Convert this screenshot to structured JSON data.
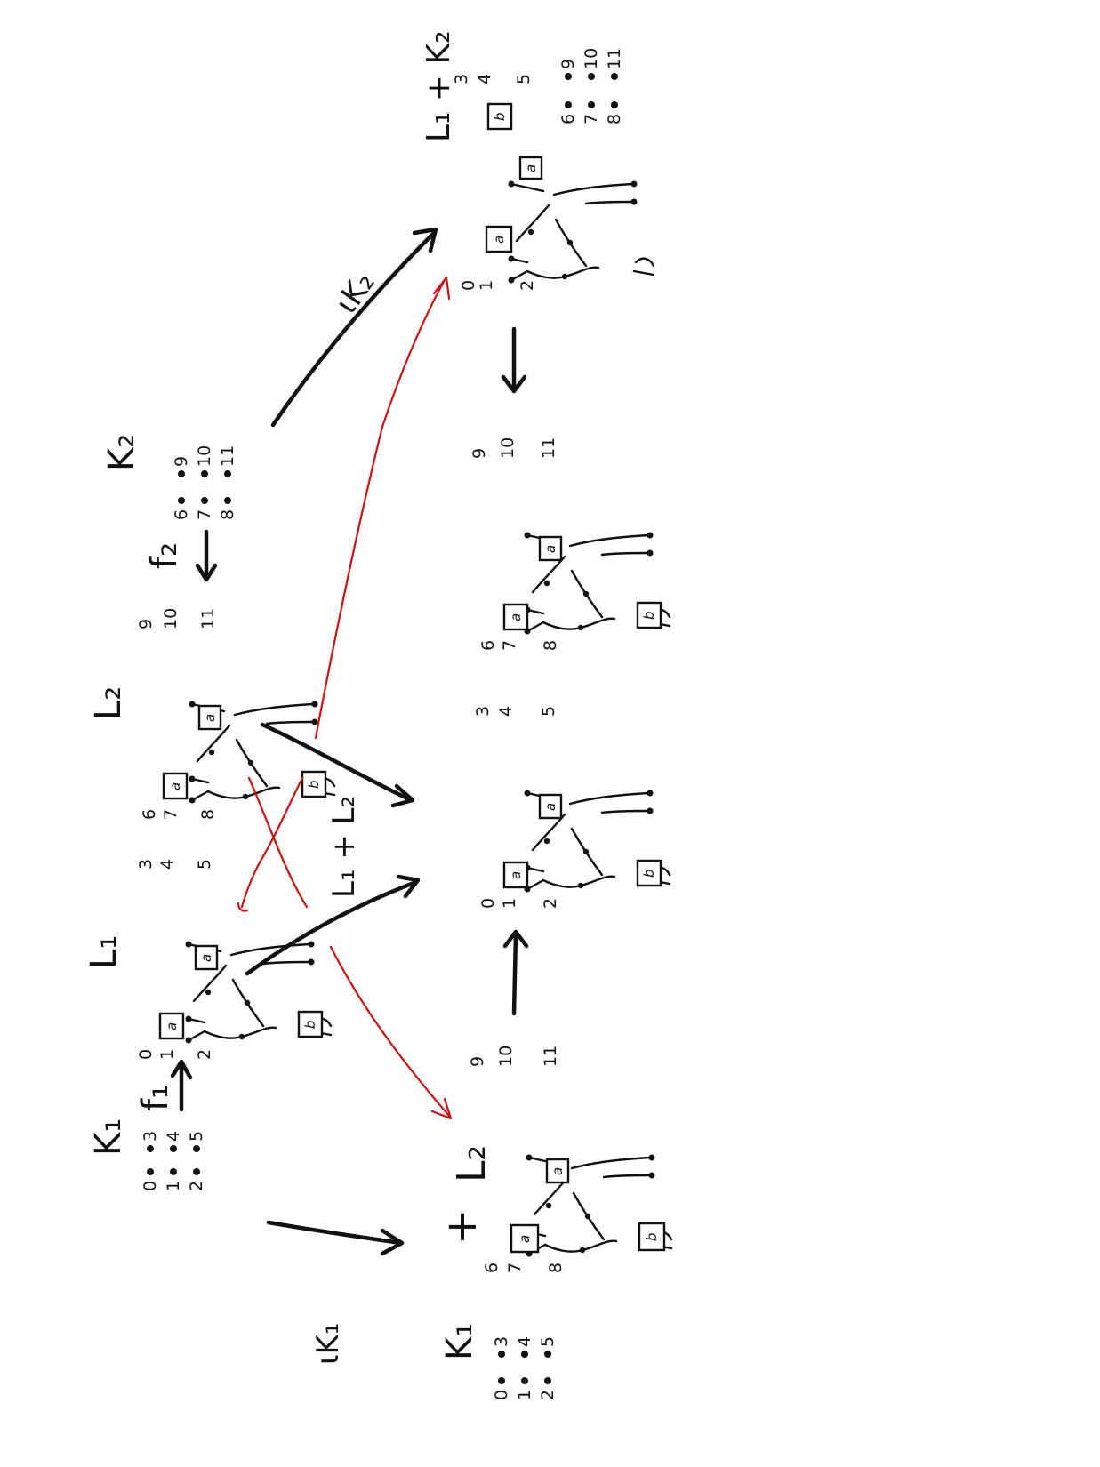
{
  "labels": {
    "K1": "K₁",
    "L1": "L₁",
    "L2": "L₂",
    "K2": "K₂",
    "f1": "f₁",
    "f2": "f₂",
    "iK1": "ιK₁",
    "iK2": "ιK₂",
    "L1_plus_L2": "L₁ + L₂",
    "L1_plus_K2": "L₁ + K₂",
    "K1_bottom": "K₁",
    "L2_bottom": "L₂",
    "plus": "+"
  },
  "gadgets": {
    "box_a": "a",
    "box_b": "b",
    "L1_nodes": [
      "0",
      "1",
      "2",
      "3",
      "4",
      "5"
    ],
    "L2_nodes": [
      "6",
      "7",
      "8",
      "9",
      "10",
      "11"
    ]
  },
  "dots": {
    "K1": [
      "0",
      "1",
      "2",
      "3",
      "4",
      "5"
    ],
    "K2": [
      "6",
      "7",
      "8",
      "9",
      "10",
      "11"
    ],
    "K1_bottom": [
      "0",
      "1",
      "2",
      "3",
      "4",
      "5"
    ]
  },
  "colors": {
    "ink": "#111111",
    "red": "#cc1111"
  }
}
